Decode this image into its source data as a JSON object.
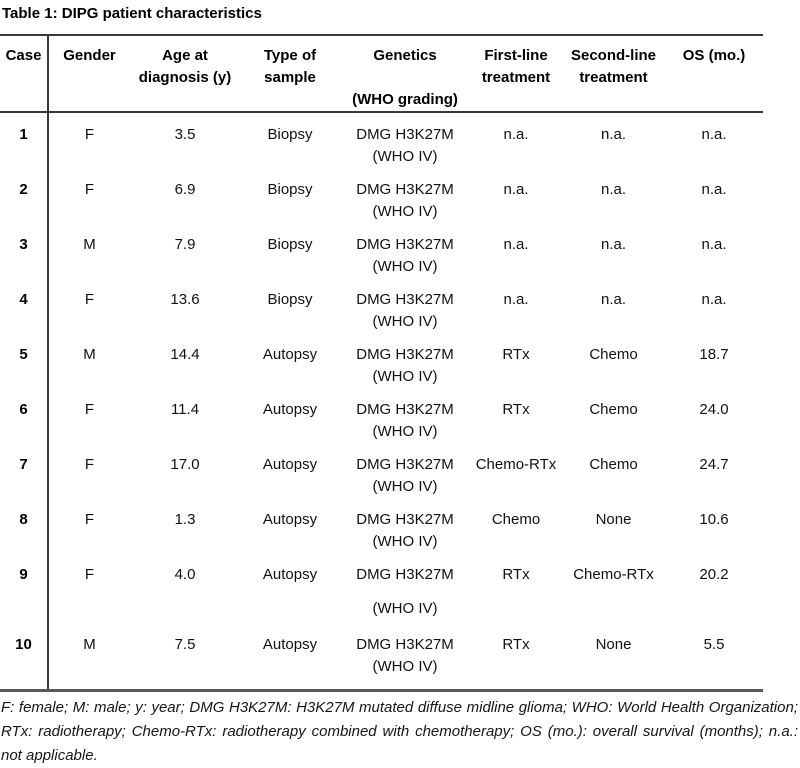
{
  "title": "Table 1: DIPG patient characteristics",
  "table": {
    "columns": [
      {
        "key": "case",
        "label": "Case",
        "lines": [
          "Case"
        ]
      },
      {
        "key": "gender",
        "label": "Gender",
        "lines": [
          "Gender"
        ]
      },
      {
        "key": "age",
        "label": "Age at diagnosis (y)",
        "lines": [
          "Age at",
          "diagnosis (y)"
        ]
      },
      {
        "key": "sample",
        "label": "Type of sample",
        "lines": [
          "Type of",
          "sample"
        ]
      },
      {
        "key": "genetics",
        "label": "Genetics (WHO grading)",
        "lines": [
          "Genetics",
          "",
          "(WHO grading)"
        ]
      },
      {
        "key": "first",
        "label": "First-line treatment",
        "lines": [
          "First-line",
          "treatment"
        ]
      },
      {
        "key": "second",
        "label": "Second-line treatment",
        "lines": [
          "Second-line",
          "treatment"
        ]
      },
      {
        "key": "os",
        "label": "OS (mo.)",
        "lines": [
          "OS (mo.)"
        ]
      }
    ],
    "rows": [
      {
        "case": "1",
        "gender": "F",
        "age": "3.5",
        "sample": "Biopsy",
        "genetics": "DMG H3K27M",
        "who": "(WHO IV)",
        "first": "n.a.",
        "second": "n.a.",
        "os": "n.a.",
        "tall": false
      },
      {
        "case": "2",
        "gender": "F",
        "age": "6.9",
        "sample": "Biopsy",
        "genetics": "DMG H3K27M",
        "who": "(WHO IV)",
        "first": "n.a.",
        "second": "n.a.",
        "os": "n.a.",
        "tall": false
      },
      {
        "case": "3",
        "gender": "M",
        "age": "7.9",
        "sample": "Biopsy",
        "genetics": "DMG H3K27M",
        "who": "(WHO IV)",
        "first": "n.a.",
        "second": "n.a.",
        "os": "n.a.",
        "tall": false
      },
      {
        "case": "4",
        "gender": "F",
        "age": "13.6",
        "sample": "Biopsy",
        "genetics": "DMG H3K27M",
        "who": "(WHO IV)",
        "first": "n.a.",
        "second": "n.a.",
        "os": "n.a.",
        "tall": false
      },
      {
        "case": "5",
        "gender": "M",
        "age": "14.4",
        "sample": "Autopsy",
        "genetics": "DMG H3K27M",
        "who": "(WHO IV)",
        "first": "RTx",
        "second": "Chemo",
        "os": "18.7",
        "tall": false
      },
      {
        "case": "6",
        "gender": "F",
        "age": "11.4",
        "sample": "Autopsy",
        "genetics": "DMG H3K27M",
        "who": "(WHO IV)",
        "first": "RTx",
        "second": "Chemo",
        "os": "24.0",
        "tall": false
      },
      {
        "case": "7",
        "gender": "F",
        "age": "17.0",
        "sample": "Autopsy",
        "genetics": "DMG H3K27M",
        "who": "(WHO IV)",
        "first": "Chemo-RTx",
        "second": "Chemo",
        "os": "24.7",
        "tall": false
      },
      {
        "case": "8",
        "gender": "F",
        "age": "1.3",
        "sample": "Autopsy",
        "genetics": "DMG H3K27M",
        "who": "(WHO IV)",
        "first": "Chemo",
        "second": "None",
        "os": "10.6",
        "tall": false
      },
      {
        "case": "9",
        "gender": "F",
        "age": "4.0",
        "sample": "Autopsy",
        "genetics": "DMG H3K27M",
        "who": "(WHO IV)",
        "first": "RTx",
        "second": "Chemo-RTx",
        "os": "20.2",
        "tall": true
      },
      {
        "case": "10",
        "gender": "M",
        "age": "7.5",
        "sample": "Autopsy",
        "genetics": "DMG H3K27M",
        "who": "(WHO IV)",
        "first": "RTx",
        "second": "None",
        "os": "5.5",
        "tall": false
      }
    ]
  },
  "footnote": "F: female; M: male; y: year; DMG H3K27M: H3K27M mutated diffuse midline glioma; WHO: World Health Organization; RTx: radiotherapy; Chemo-RTx: radiotherapy combined with chemotherapy; OS (mo.): overall survival (months); n.a.: not applicable.",
  "colors": {
    "text": "#111111",
    "rule": "#3a3a3a",
    "bottom_rule": "#595959",
    "background": "#ffffff"
  }
}
